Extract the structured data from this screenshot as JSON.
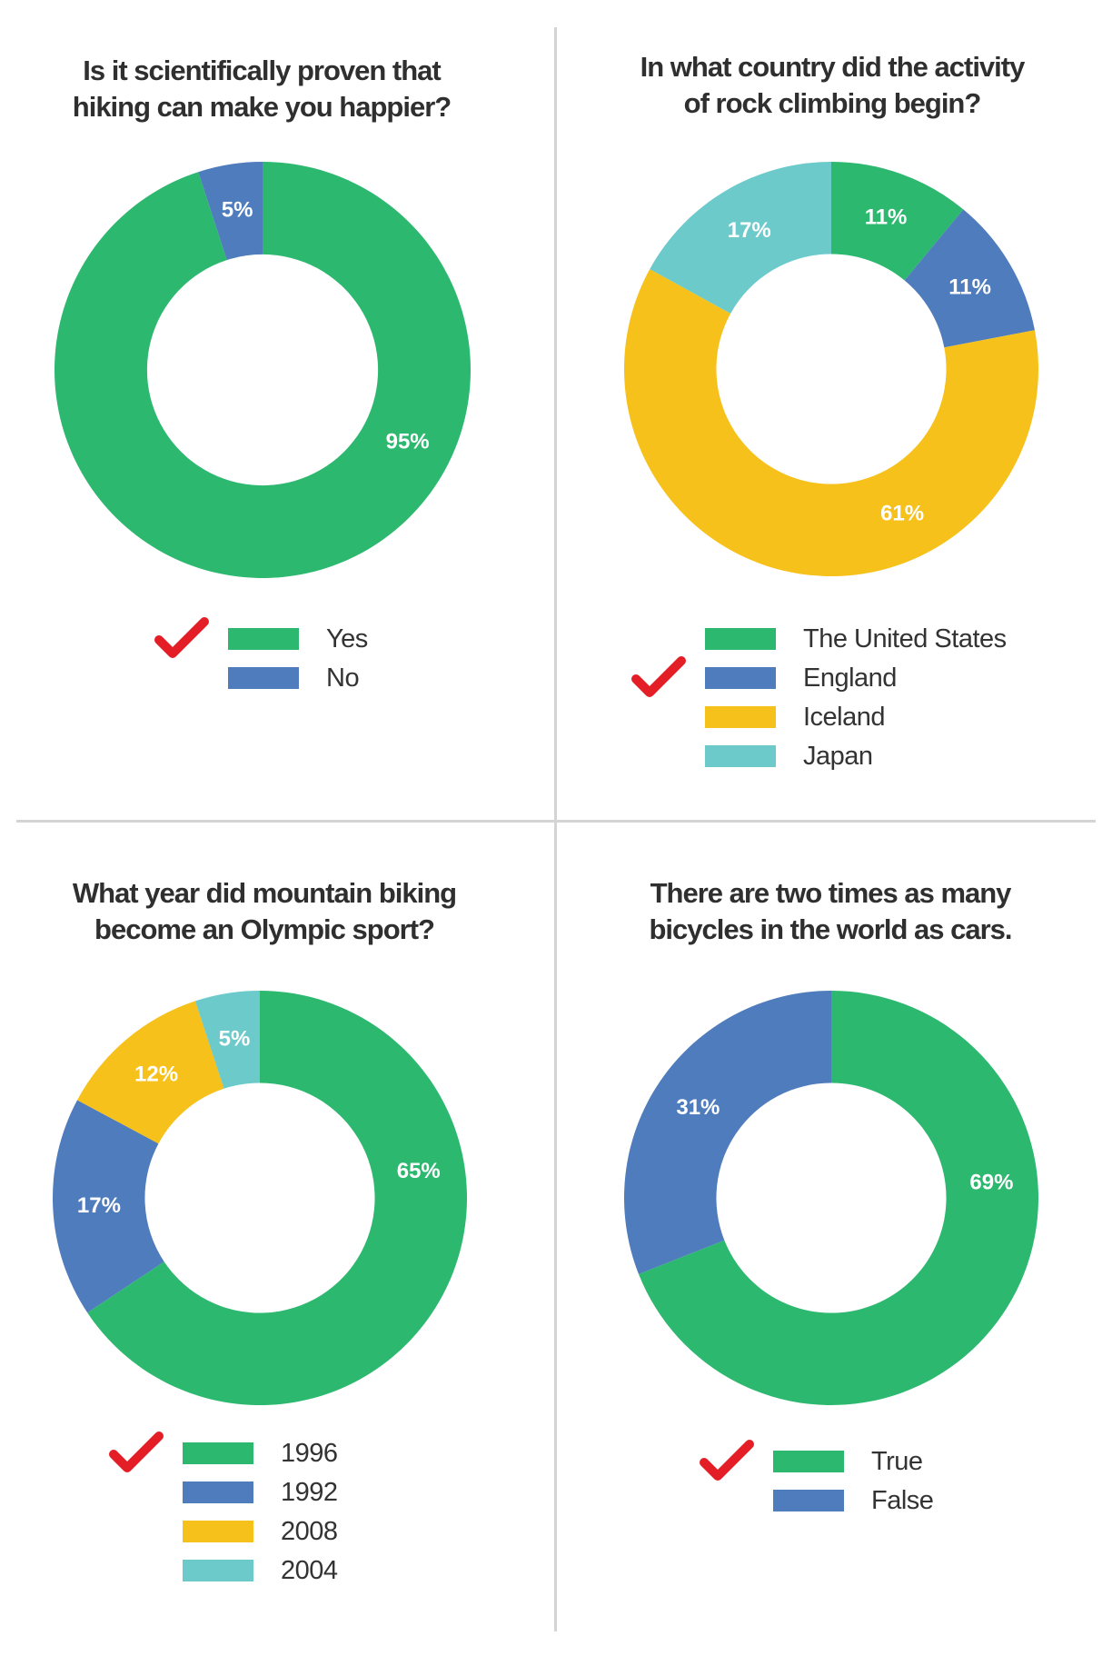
{
  "colors": {
    "green": "#2db870",
    "blue": "#4f7cbc",
    "yellow": "#f7c11b",
    "teal": "#6ccacb",
    "check_red": "#e41e26",
    "divider": "#d4d4d4"
  },
  "chart_data": [
    {
      "type": "pie",
      "title_lines": [
        "Is it scientifically proven that",
        "hiking can make you happier?"
      ],
      "slices": [
        {
          "name": "Yes",
          "value": 95,
          "label": "95%",
          "color": "#2db870"
        },
        {
          "name": "No",
          "value": 5,
          "label": "5%",
          "color": "#4f7cbc"
        }
      ],
      "correct": "Yes"
    },
    {
      "type": "pie",
      "title_lines": [
        "In what country did the activity",
        "of rock climbing begin?"
      ],
      "slices": [
        {
          "name": "The United States",
          "value": 11,
          "label": "11%",
          "color": "#2db870"
        },
        {
          "name": "England",
          "value": 11,
          "label": "11%",
          "color": "#4f7cbc"
        },
        {
          "name": "Iceland",
          "value": 61,
          "label": "61%",
          "color": "#f7c11b"
        },
        {
          "name": "Japan",
          "value": 17,
          "label": "17%",
          "color": "#6ccacb"
        }
      ],
      "correct": "England"
    },
    {
      "type": "pie",
      "title_lines": [
        "What year did mountain biking",
        "become an Olympic sport?"
      ],
      "slices": [
        {
          "name": "1996",
          "value": 65,
          "label": "65%",
          "color": "#2db870"
        },
        {
          "name": "1992",
          "value": 17,
          "label": "17%",
          "color": "#4f7cbc"
        },
        {
          "name": "2008",
          "value": 12,
          "label": "12%",
          "color": "#f7c11b"
        },
        {
          "name": "2004",
          "value": 5,
          "label": "5%",
          "color": "#6ccacb"
        }
      ],
      "correct": "1996"
    },
    {
      "type": "pie",
      "title_lines": [
        "There are two times as many",
        "bicycles in the world as cars."
      ],
      "slices": [
        {
          "name": "True",
          "value": 69,
          "label": "69%",
          "color": "#2db870"
        },
        {
          "name": "False",
          "value": 31,
          "label": "31%",
          "color": "#4f7cbc"
        }
      ],
      "correct": "True"
    }
  ]
}
